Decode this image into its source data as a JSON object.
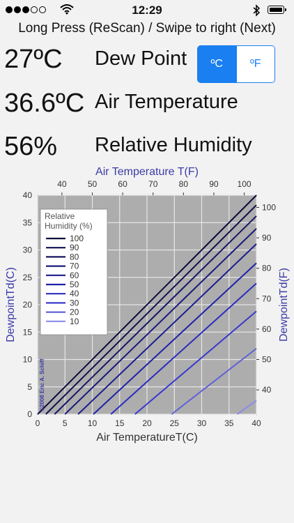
{
  "status_bar": {
    "time": "12:29"
  },
  "instructions": "Long Press (ReScan)  / Swipe to right (Next)",
  "readings": {
    "dew_point": {
      "value": "27ºC",
      "label": "Dew Point"
    },
    "air_temperature": {
      "value": "36.6ºC",
      "label": "Air Temperature"
    },
    "relative_humidity": {
      "value": "56%",
      "label": "Relative Humidity"
    }
  },
  "unit_toggle": {
    "celsius": "ºC",
    "fahrenheit": "ºF",
    "selected": "ºC"
  },
  "colors": {
    "accent": "#1a7ff0",
    "plot_bg": "#adadad",
    "axis_label": "#3a3aa8"
  },
  "chart_data": {
    "type": "line",
    "title": "",
    "top_axis_label": "Air Temperature T(F)",
    "top_ticks": [
      40,
      50,
      60,
      70,
      80,
      90,
      100
    ],
    "xlabel": "Air TemperatureT(C)",
    "ylabel": "DewpointTd(C)",
    "right_axis_label": "DewpointTd(F)",
    "right_ticks": [
      40,
      50,
      60,
      70,
      80,
      90,
      100
    ],
    "xlim": [
      0,
      40
    ],
    "ylim": [
      0,
      40
    ],
    "x_ticks": [
      0,
      5,
      10,
      15,
      20,
      25,
      30,
      35,
      40
    ],
    "y_ticks": [
      0,
      5,
      10,
      15,
      20,
      25,
      30,
      35,
      40
    ],
    "grid": true,
    "legend": {
      "title": "Relative Humidity (%)",
      "placement": "top-left"
    },
    "series": [
      {
        "name": "100",
        "x": [
          0,
          40
        ],
        "y": [
          0,
          40
        ],
        "color": "#0a0a3c"
      },
      {
        "name": "90",
        "x": [
          1.5,
          40
        ],
        "y": [
          0,
          38.2
        ],
        "color": "#10104e"
      },
      {
        "name": "80",
        "x": [
          3.1,
          40
        ],
        "y": [
          0,
          36.2
        ],
        "color": "#161663"
      },
      {
        "name": "70",
        "x": [
          5.0,
          40
        ],
        "y": [
          0,
          33.9
        ],
        "color": "#1a1a7a"
      },
      {
        "name": "60",
        "x": [
          7.4,
          40
        ],
        "y": [
          0,
          31.1
        ],
        "color": "#1c1c8e"
      },
      {
        "name": "50",
        "x": [
          10.2,
          40
        ],
        "y": [
          0,
          27.6
        ],
        "color": "#2020a8"
      },
      {
        "name": "40",
        "x": [
          13.4,
          40
        ],
        "y": [
          0,
          23.9
        ],
        "color": "#2b2bc0"
      },
      {
        "name": "30",
        "x": [
          17.8,
          40
        ],
        "y": [
          0,
          18.8
        ],
        "color": "#3838cf"
      },
      {
        "name": "20",
        "x": [
          24.5,
          40
        ],
        "y": [
          0,
          12.0
        ],
        "color": "#6262d6"
      },
      {
        "name": "10",
        "x": [
          36.5,
          40
        ],
        "y": [
          0,
          2.5
        ],
        "color": "#8c8cea"
      }
    ],
    "annotation": "©2008 Eric A. Schiff"
  }
}
